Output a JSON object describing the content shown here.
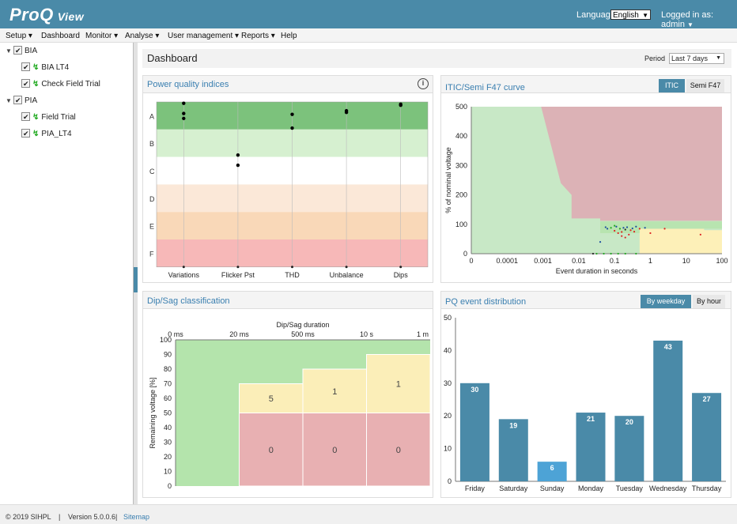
{
  "header": {
    "logo": "ProQ",
    "logo_sub": "View",
    "language_label": "Language:",
    "language_value": "English",
    "logged_in": "Logged in as: admin"
  },
  "menu": [
    "Setup",
    "Dashboard",
    "Monitor",
    "Analyse",
    "User management",
    "Reports",
    "Help"
  ],
  "tree": [
    {
      "label": "BIA",
      "children": [
        "BIA LT4",
        "Check Field Trial"
      ]
    },
    {
      "label": "PIA",
      "children": [
        "Field Trial",
        "PIA_LT4"
      ]
    }
  ],
  "dashboard": {
    "title": "Dashboard",
    "period_label": "Period",
    "period_value": "Last 7 days"
  },
  "pq_indices": {
    "title": "Power quality indices",
    "info_icon": "info-icon",
    "chart_data": {
      "type": "scatter",
      "categories": [
        "Variations",
        "Flicker Pst",
        "THD",
        "Unbalance",
        "Dips"
      ],
      "grades": [
        "A",
        "B",
        "C",
        "D",
        "E",
        "F"
      ],
      "band_colors": [
        "#7cc27c",
        "#d6f0d0",
        "#ffffff",
        "#fbe8d8",
        "#f9d8b8",
        "#f7b8b8"
      ],
      "points": [
        {
          "category": "Variations",
          "grade_pos": [
            0.05,
            0.42,
            0.6
          ]
        },
        {
          "category": "Flicker Pst",
          "grade_pos": [
            1.93,
            2.3
          ]
        },
        {
          "category": "THD",
          "grade_pos": [
            0.45,
            0.95
          ]
        },
        {
          "category": "Unbalance",
          "grade_pos": [
            0.32,
            0.38
          ]
        },
        {
          "category": "Dips",
          "grade_pos": [
            0.08,
            0.12
          ]
        }
      ]
    }
  },
  "itic": {
    "title": "ITIC/Semi F47 curve",
    "tabs": [
      "ITIC",
      "Semi F47"
    ],
    "chart_data": {
      "type": "scatter",
      "xlabel": "Event duration in seconds",
      "ylabel": "% of nominal voltage",
      "x_ticks": [
        "0",
        "0.0001",
        "0.001",
        "0.01",
        "0.1",
        "1",
        "10",
        "100"
      ],
      "y_ticks": [
        "0",
        "100",
        "200",
        "300",
        "400",
        "500"
      ],
      "ylim": [
        0,
        500
      ]
    }
  },
  "dipsag": {
    "title": "Dip/Sag classification",
    "chart_data": {
      "type": "table",
      "xlabel": "Dip/Sag duration",
      "ylabel": "Remaining voltage [%]",
      "x_ticks": [
        "0 ms",
        "20 ms",
        "500 ms",
        "10 s",
        "1 m"
      ],
      "y_ticks": [
        "0",
        "10",
        "20",
        "30",
        "40",
        "50",
        "60",
        "70",
        "80",
        "90",
        "100"
      ],
      "ylim": [
        0,
        100
      ],
      "top_cells": [
        "5",
        "1",
        "1"
      ],
      "bottom_cells": [
        "0",
        "0",
        "0"
      ]
    }
  },
  "pq_events": {
    "title": "PQ event distribution",
    "tabs": [
      "By weekday",
      "By hour"
    ],
    "chart_data": {
      "type": "bar",
      "categories": [
        "Friday",
        "Saturday",
        "Sunday",
        "Monday",
        "Tuesday",
        "Wednesday",
        "Thursday"
      ],
      "values": [
        30,
        19,
        6,
        21,
        20,
        43,
        27
      ],
      "y_ticks": [
        "0",
        "10",
        "20",
        "30",
        "40",
        "50"
      ],
      "ylim": [
        0,
        50
      ],
      "bar_color": "#4a8aa8",
      "highlight_color": "#4da3d6"
    }
  },
  "footer": {
    "copyright": "© 2019 SIHPL",
    "sep1": "|",
    "version": "Version 5.0.0.6",
    "sep2": "|",
    "sitemap": "Sitemap"
  }
}
